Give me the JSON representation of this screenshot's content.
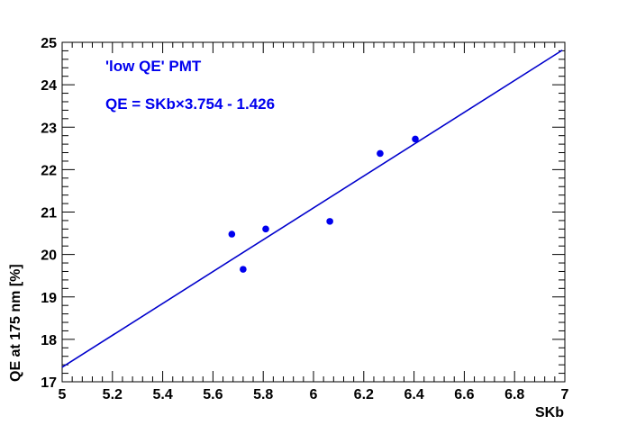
{
  "chart_data": {
    "type": "scatter",
    "title": "",
    "xlabel": "SKb",
    "ylabel": "QE at 175 nm [%]",
    "xlim": [
      5,
      7
    ],
    "ylim": [
      17,
      25
    ],
    "x_ticks": [
      "5",
      "5.2",
      "5.4",
      "5.6",
      "5.8",
      "6",
      "6.2",
      "6.4",
      "6.6",
      "6.8",
      "7"
    ],
    "y_ticks": [
      "17",
      "18",
      "19",
      "20",
      "21",
      "22",
      "23",
      "24",
      "25"
    ],
    "grid": false,
    "points": [
      {
        "x": 5.675,
        "y": 20.48
      },
      {
        "x": 5.72,
        "y": 19.65
      },
      {
        "x": 5.81,
        "y": 20.6
      },
      {
        "x": 6.065,
        "y": 20.78
      },
      {
        "x": 6.265,
        "y": 22.38
      },
      {
        "x": 6.405,
        "y": 22.72
      }
    ],
    "fit": {
      "slope": 3.754,
      "intercept": -1.426,
      "x_range": [
        5,
        6.99
      ]
    },
    "annotations": [
      "'low QE' PMT",
      "QE = SKb×3.754 - 1.426"
    ],
    "colors": {
      "points": "#0000ee",
      "fit_line": "#0000cc",
      "annotation": "#0000ee",
      "axis": "#000000"
    }
  }
}
